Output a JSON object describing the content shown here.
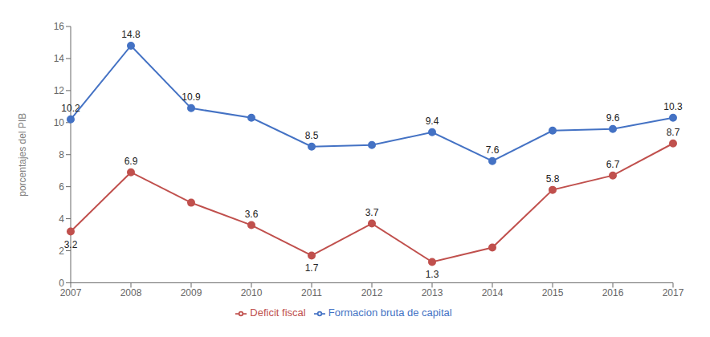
{
  "chart_data": {
    "type": "line",
    "categories": [
      "2007",
      "2008",
      "2009",
      "2010",
      "2011",
      "2012",
      "2013",
      "2014",
      "2015",
      "2016",
      "2017"
    ],
    "series": [
      {
        "name": "Formacion bruta de capital",
        "color": "#4472C4",
        "marker": "circle",
        "values": [
          10.2,
          14.8,
          10.9,
          10.3,
          8.5,
          8.6,
          9.4,
          7.6,
          9.5,
          9.6,
          10.3
        ],
        "value_labels": [
          "10.2",
          "14.8",
          "10.9",
          null,
          "8.5",
          null,
          "9.4",
          "7.6",
          null,
          "9.6",
          "10.3"
        ]
      },
      {
        "name": "Deficit fiscal",
        "color": "#C0504D",
        "marker": "circle",
        "values": [
          3.2,
          6.9,
          5.0,
          3.6,
          1.7,
          3.7,
          1.3,
          2.2,
          5.8,
          6.7,
          8.7
        ],
        "value_labels": [
          "3.2",
          "6.9",
          null,
          "3.6",
          "1.7",
          "3.7",
          "1.3",
          null,
          "5.8",
          "6.7",
          "8.7"
        ]
      }
    ],
    "ylabel": "porcentajes del PIB",
    "ylim": [
      0,
      16
    ],
    "yticks": [
      0,
      2,
      4,
      6,
      8,
      10,
      12,
      14,
      16
    ],
    "grid": false,
    "legend": "bottom",
    "data_labels": true
  }
}
